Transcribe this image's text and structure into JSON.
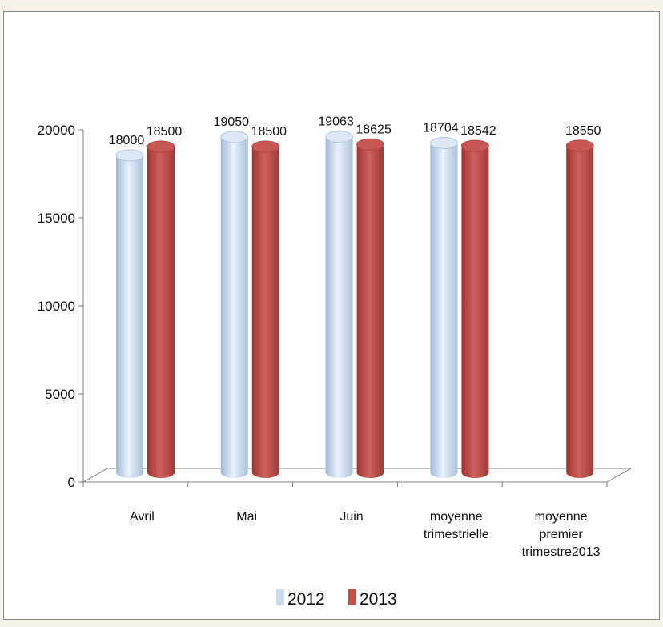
{
  "chart_data": {
    "type": "bar",
    "title": "",
    "xlabel": "",
    "ylabel": "",
    "ylim": [
      0,
      20000
    ],
    "yticks": [
      0,
      5000,
      10000,
      15000,
      20000
    ],
    "categories": [
      [
        "Avril"
      ],
      [
        "Mai"
      ],
      [
        "Juin"
      ],
      [
        "moyenne",
        "trimestrielle"
      ],
      [
        "moyenne",
        "premier",
        "trimestre2013"
      ]
    ],
    "series": [
      {
        "name": "2012",
        "color": "#c9dcef",
        "values": [
          18000,
          19050,
          19063,
          18704,
          null
        ]
      },
      {
        "name": "2013",
        "color": "#c0504d",
        "values": [
          18500,
          18500,
          18625,
          18542,
          18550
        ]
      }
    ],
    "legend_position": "bottom",
    "grid": false,
    "style": "3d-cylinder"
  }
}
